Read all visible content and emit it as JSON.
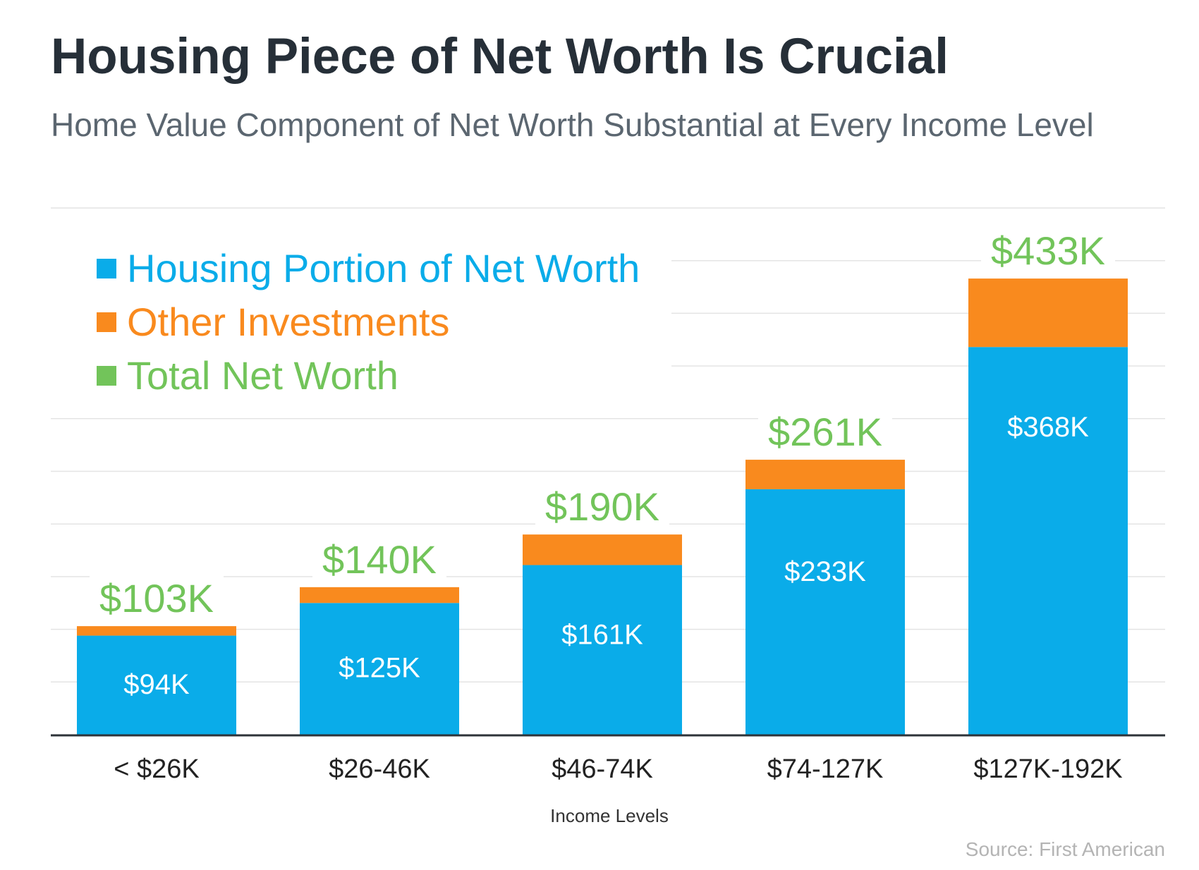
{
  "colors": {
    "housing": "#0aace9",
    "other": "#f98a1e",
    "total": "#72c45a",
    "grid": "#e4e4e4",
    "axis": "#2d3339"
  },
  "chart_data": {
    "type": "bar",
    "stacked": true,
    "title": "Housing Piece of Net Worth Is Crucial",
    "subtitle": "Home Value Component of Net Worth Substantial at Every Income Level",
    "xlabel": "Income Levels",
    "ylabel": "",
    "source": "Source: First American",
    "categories": [
      "< $26K",
      "$26-46K",
      "$46-74K",
      "$74-127K",
      "$127K-192K"
    ],
    "series": [
      {
        "name": "Housing Portion of Net Worth",
        "values": [
          94,
          125,
          161,
          233,
          368
        ],
        "labels": [
          "$94K",
          "$125K",
          "$161K",
          "$233K",
          "$368K"
        ]
      },
      {
        "name": "Other Investments",
        "values": [
          9,
          15,
          29,
          28,
          65
        ]
      }
    ],
    "totals": {
      "name": "Total Net Worth",
      "values": [
        103,
        140,
        190,
        261,
        433
      ],
      "labels": [
        "$103K",
        "$140K",
        "$190K",
        "$261K",
        "$433K"
      ]
    },
    "ylim": [
      0,
      500
    ],
    "grid": true,
    "legend_position": "top-left"
  }
}
